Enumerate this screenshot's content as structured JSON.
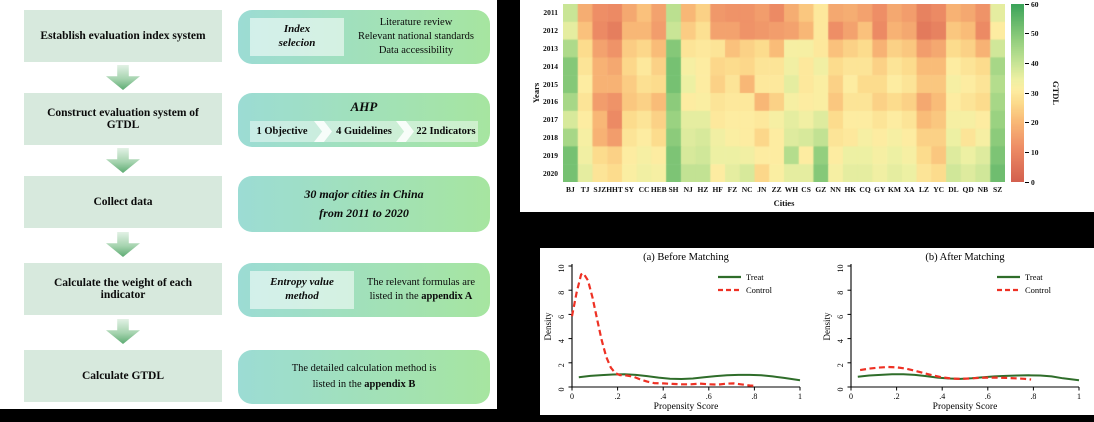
{
  "flowchart": {
    "steps": [
      "Establish evaluation index system",
      "Construct evaluation system of GTDL",
      "Collect data",
      "Calculate the weight of each indicator",
      "Calculate GTDL"
    ],
    "details": {
      "d1": {
        "tag_line1": "Index",
        "tag_line2": "selecion",
        "line1": "Literature review",
        "line2": "Relevant national standards",
        "line3": "Data accessibility"
      },
      "d2": {
        "title": "AHP",
        "item1": "1 Objective",
        "item2": "4 Guidelines",
        "item3": "22 Indicators"
      },
      "d3": {
        "line1": "30 major cities in China",
        "line2": "from 2011 to 2020"
      },
      "d4": {
        "tag_line1": "Entropy value",
        "tag_line2": "method",
        "line1": "The relevant formulas are",
        "line2_pre": "listed in the ",
        "line2_bold": "appendix A"
      },
      "d5": {
        "line1": "The detailed calculation method is",
        "line2_pre": "listed in the ",
        "line2_bold": "appendix B"
      }
    }
  },
  "colors": {
    "flow_box": "#d7e9dd",
    "gradient_left": "#9cdcd4",
    "gradient_right": "#a6e5a0",
    "treat_green": "#2f6d2a",
    "control_red": "#ee3124"
  },
  "chart_data": [
    {
      "type": "heatmap",
      "xlabel": "Cities",
      "ylabel": "Years",
      "colorbar_label": "GTDL",
      "vmin": 0,
      "vmax": 60,
      "colorbar_ticks": [
        0,
        10,
        20,
        30,
        40,
        50,
        60
      ],
      "years": [
        "2011",
        "2012",
        "2013",
        "2014",
        "2015",
        "2016",
        "2017",
        "2018",
        "2019",
        "2020"
      ],
      "cities": [
        "BJ",
        "TJ",
        "SJZ",
        "HHT",
        "SY",
        "CC",
        "HEB",
        "SH",
        "NJ",
        "HZ",
        "HF",
        "FZ",
        "NC",
        "JN",
        "ZZ",
        "WH",
        "CS",
        "GZ",
        "NN",
        "HK",
        "CQ",
        "GY",
        "KM",
        "XA",
        "LZ",
        "YC",
        "DL",
        "QD",
        "NB",
        "SZ"
      ],
      "values": [
        [
          40,
          18,
          12,
          11,
          17,
          22,
          16,
          42,
          20,
          25,
          14,
          13,
          13,
          15,
          11,
          18,
          23,
          30,
          17,
          18,
          16,
          12,
          17,
          15,
          9,
          11,
          19,
          17,
          13,
          36
        ],
        [
          36,
          22,
          11,
          8,
          20,
          20,
          15,
          40,
          24,
          28,
          16,
          16,
          13,
          14,
          15,
          16,
          20,
          30,
          12,
          16,
          22,
          11,
          19,
          17,
          7,
          9,
          23,
          21,
          11,
          31
        ],
        [
          44,
          27,
          16,
          13,
          24,
          26,
          21,
          50,
          29,
          30,
          29,
          22,
          25,
          27,
          21,
          33,
          33,
          30,
          22,
          25,
          27,
          19,
          25,
          23,
          15,
          17,
          27,
          25,
          19,
          39
        ],
        [
          50,
          29,
          19,
          17,
          26,
          30,
          25,
          52,
          33,
          31,
          26,
          27,
          26,
          29,
          29,
          34,
          30,
          34,
          27,
          29,
          29,
          25,
          29,
          27,
          21,
          21,
          31,
          29,
          27,
          45
        ],
        [
          50,
          31,
          19,
          19,
          24,
          28,
          27,
          52,
          35,
          31,
          25,
          29,
          20,
          30,
          30,
          36,
          30,
          32,
          25,
          31,
          27,
          27,
          31,
          29,
          23,
          23,
          33,
          31,
          29,
          43
        ],
        [
          45,
          29,
          15,
          13,
          23,
          25,
          21,
          49,
          31,
          32,
          29,
          30,
          30,
          20,
          25,
          33,
          31,
          32,
          23,
          29,
          29,
          25,
          27,
          25,
          17,
          21,
          31,
          29,
          27,
          45
        ],
        [
          38,
          31,
          20,
          11,
          27,
          29,
          25,
          47,
          36,
          36,
          30,
          31,
          31,
          30,
          33,
          36,
          34,
          37,
          27,
          31,
          31,
          29,
          31,
          29,
          21,
          23,
          33,
          33,
          31,
          47
        ],
        [
          45,
          33,
          19,
          15,
          29,
          31,
          27,
          49,
          37,
          38,
          34,
          32,
          31,
          26,
          31,
          37,
          38,
          41,
          29,
          30,
          33,
          31,
          33,
          31,
          25,
          25,
          35,
          29,
          33,
          49
        ],
        [
          52,
          34,
          27,
          25,
          31,
          33,
          31,
          51,
          38,
          39,
          35,
          35,
          34,
          31,
          31,
          43,
          31,
          48,
          31,
          35,
          35,
          33,
          35,
          33,
          27,
          23,
          37,
          35,
          37,
          51
        ],
        [
          52,
          36,
          29,
          27,
          32,
          34,
          33,
          51,
          41,
          41,
          31,
          36,
          38,
          26,
          32,
          36,
          36,
          50,
          33,
          36,
          36,
          34,
          36,
          35,
          29,
          27,
          39,
          37,
          39,
          53
        ]
      ],
      "colormap_stops": [
        [
          0.0,
          "#d35f4e"
        ],
        [
          0.2,
          "#ee8e66"
        ],
        [
          0.35,
          "#f9bc78"
        ],
        [
          0.45,
          "#fcdc8d"
        ],
        [
          0.52,
          "#fdeda2"
        ],
        [
          0.58,
          "#eef0a3"
        ],
        [
          0.68,
          "#c3e394"
        ],
        [
          0.8,
          "#93cf7e"
        ],
        [
          1.0,
          "#3ca45a"
        ]
      ]
    },
    {
      "type": "line",
      "title": "(a) Before Matching",
      "xlabel": "Propensity Score",
      "ylabel": "Density",
      "xlim": [
        0,
        1
      ],
      "ylim": [
        0,
        10
      ],
      "xticks": [
        {
          "v": 0,
          "label": "0"
        },
        {
          "v": 0.2,
          "label": ".2"
        },
        {
          "v": 0.4,
          "label": ".4"
        },
        {
          "v": 0.6,
          "label": ".6"
        },
        {
          "v": 0.8,
          "label": ".8"
        },
        {
          "v": 1,
          "label": "1"
        }
      ],
      "yticks": [
        0,
        2,
        4,
        6,
        8,
        10
      ],
      "legend": [
        "Treat",
        "Control"
      ],
      "legend_position": "top-right",
      "series": [
        {
          "name": "Treat",
          "color": "#2f6d2a",
          "dash": false,
          "points": [
            [
              0.03,
              0.8
            ],
            [
              0.08,
              0.92
            ],
            [
              0.13,
              0.98
            ],
            [
              0.18,
              1.03
            ],
            [
              0.23,
              1.05
            ],
            [
              0.28,
              1.0
            ],
            [
              0.33,
              0.9
            ],
            [
              0.38,
              0.78
            ],
            [
              0.43,
              0.68
            ],
            [
              0.48,
              0.66
            ],
            [
              0.53,
              0.7
            ],
            [
              0.58,
              0.8
            ],
            [
              0.63,
              0.9
            ],
            [
              0.68,
              0.97
            ],
            [
              0.73,
              1.0
            ],
            [
              0.78,
              1.0
            ],
            [
              0.83,
              0.97
            ],
            [
              0.88,
              0.88
            ],
            [
              0.93,
              0.75
            ],
            [
              1.0,
              0.55
            ]
          ]
        },
        {
          "name": "Control",
          "color": "#ee3124",
          "dash": true,
          "points": [
            [
              0.0,
              5.85
            ],
            [
              0.02,
              7.8
            ],
            [
              0.04,
              9.3
            ],
            [
              0.05,
              9.4
            ],
            [
              0.07,
              8.8
            ],
            [
              0.09,
              7.4
            ],
            [
              0.11,
              5.6
            ],
            [
              0.13,
              3.9
            ],
            [
              0.15,
              2.5
            ],
            [
              0.17,
              1.6
            ],
            [
              0.19,
              1.15
            ],
            [
              0.21,
              0.98
            ],
            [
              0.24,
              0.95
            ],
            [
              0.27,
              0.85
            ],
            [
              0.3,
              0.62
            ],
            [
              0.33,
              0.45
            ],
            [
              0.36,
              0.32
            ],
            [
              0.4,
              0.3
            ],
            [
              0.44,
              0.26
            ],
            [
              0.48,
              0.22
            ],
            [
              0.52,
              0.22
            ],
            [
              0.56,
              0.28
            ],
            [
              0.6,
              0.22
            ],
            [
              0.64,
              0.2
            ],
            [
              0.68,
              0.28
            ],
            [
              0.71,
              0.3
            ],
            [
              0.74,
              0.22
            ],
            [
              0.78,
              0.12
            ],
            [
              0.8,
              0.1
            ]
          ]
        }
      ]
    },
    {
      "type": "line",
      "title": "(b) After Matching",
      "xlabel": "Propensity Score",
      "ylabel": "Density",
      "xlim": [
        0,
        1
      ],
      "ylim": [
        0,
        10
      ],
      "xticks": [
        {
          "v": 0,
          "label": "0"
        },
        {
          "v": 0.2,
          "label": ".2"
        },
        {
          "v": 0.4,
          "label": ".4"
        },
        {
          "v": 0.6,
          "label": ".6"
        },
        {
          "v": 0.8,
          "label": ".8"
        },
        {
          "v": 1,
          "label": "1"
        }
      ],
      "yticks": [
        0,
        2,
        4,
        6,
        8,
        10
      ],
      "legend": [
        "Treat",
        "Control"
      ],
      "legend_position": "top-right",
      "series": [
        {
          "name": "Treat",
          "color": "#2f6d2a",
          "dash": false,
          "points": [
            [
              0.03,
              0.85
            ],
            [
              0.08,
              0.95
            ],
            [
              0.13,
              1.0
            ],
            [
              0.18,
              1.05
            ],
            [
              0.23,
              1.05
            ],
            [
              0.28,
              1.0
            ],
            [
              0.33,
              0.9
            ],
            [
              0.38,
              0.78
            ],
            [
              0.43,
              0.7
            ],
            [
              0.48,
              0.67
            ],
            [
              0.53,
              0.72
            ],
            [
              0.58,
              0.8
            ],
            [
              0.63,
              0.88
            ],
            [
              0.68,
              0.92
            ],
            [
              0.73,
              0.95
            ],
            [
              0.78,
              0.97
            ],
            [
              0.83,
              0.95
            ],
            [
              0.88,
              0.88
            ],
            [
              0.93,
              0.72
            ],
            [
              1.0,
              0.55
            ]
          ]
        },
        {
          "name": "Control",
          "color": "#ee3124",
          "dash": true,
          "points": [
            [
              0.04,
              1.4
            ],
            [
              0.08,
              1.52
            ],
            [
              0.12,
              1.6
            ],
            [
              0.16,
              1.65
            ],
            [
              0.2,
              1.63
            ],
            [
              0.24,
              1.52
            ],
            [
              0.28,
              1.35
            ],
            [
              0.32,
              1.15
            ],
            [
              0.36,
              0.95
            ],
            [
              0.4,
              0.8
            ],
            [
              0.44,
              0.7
            ],
            [
              0.48,
              0.67
            ],
            [
              0.52,
              0.7
            ],
            [
              0.56,
              0.75
            ],
            [
              0.6,
              0.78
            ],
            [
              0.64,
              0.78
            ],
            [
              0.68,
              0.75
            ],
            [
              0.72,
              0.72
            ],
            [
              0.76,
              0.68
            ],
            [
              0.79,
              0.62
            ]
          ]
        }
      ]
    }
  ]
}
